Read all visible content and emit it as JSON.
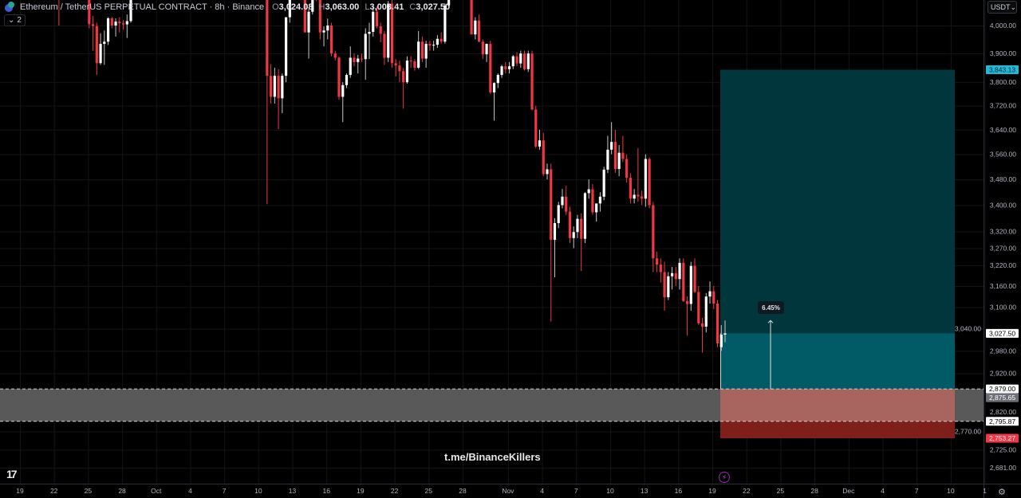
{
  "header": {
    "symbol": "Ethereum / TetherUS PERPETUAL CONTRACT · 8h · Binance",
    "o_label": "O",
    "o": "3,024.08",
    "h_label": "H",
    "h": "3,063.00",
    "l_label": "L",
    "l": "3,003.41",
    "c_label": "C",
    "c": "3,027.50",
    "indicators_count": "2"
  },
  "currency_selector": "USDT",
  "watermark": "t.me/BinanceKillers",
  "icons": {
    "logo": "tradingview-logo",
    "bolt": "lightning-icon",
    "settings": "gear-icon",
    "chevron": "chevron-down-icon"
  },
  "chart_data": {
    "type": "candlestick",
    "interval": "8h",
    "y_scale": "log",
    "grid": true,
    "colors": {
      "up": "#ffffff",
      "down": "#f23645",
      "target_zone": "#01363d",
      "profit_zone": "#005b66",
      "stop_zone": "#7f1f1b",
      "stop_overlap": "#a8655f",
      "gray_zone": "#595959",
      "target_label": "#22b8d6",
      "stop_label": "#f23645",
      "mid_label": "#6b6f78"
    },
    "price_ticks": [
      "4,000.00",
      "3,900.00",
      "3,800.00",
      "3,720.00",
      "3,640.00",
      "3,560.00",
      "3,480.00",
      "3,400.00",
      "3,320.00",
      "3,270.00",
      "3,220.00",
      "3,160.00",
      "3,100.00",
      "3,040.00",
      "2,980.00",
      "2,920.00",
      "2,820.00",
      "2,770.00",
      "2,725.00",
      "2,681.00"
    ],
    "x_ticks": [
      "19",
      "22",
      "25",
      "28",
      "Oct",
      "4",
      "7",
      "10",
      "13",
      "16",
      "19",
      "22",
      "25",
      "28",
      "Nov",
      "4",
      "7",
      "10",
      "13",
      "16",
      "19",
      "22",
      "25",
      "28",
      "Dec",
      "4",
      "7",
      "10",
      "1"
    ],
    "price_labels": [
      {
        "text": "3,843.13",
        "price": 3843.13,
        "style": "target"
      },
      {
        "text": "3,027.50",
        "price": 3027.5,
        "style": "last"
      },
      {
        "text": "2,879.00",
        "price": 2879.0,
        "style": "line"
      },
      {
        "text": "2,875.65",
        "price": 2875.65,
        "style": "mid"
      },
      {
        "text": "2,795.87",
        "price": 2795.87,
        "style": "line"
      },
      {
        "text": "2,753.27",
        "price": 2753.27,
        "style": "stop"
      }
    ],
    "position": {
      "side": "long",
      "entry": 2879.0,
      "target": 3843.13,
      "stop": 2753.27,
      "current": 3027.5,
      "move_high": 3063.0,
      "move_label": "6.45%"
    },
    "zone": {
      "top": 2879.0,
      "bottom": 2795.87
    },
    "candles": [
      [
        4520,
        4560,
        4480,
        4530
      ],
      [
        4530,
        4580,
        4500,
        4550
      ],
      [
        4550,
        4600,
        4510,
        4520
      ],
      [
        4520,
        4540,
        4460,
        4480
      ],
      [
        4480,
        4530,
        4450,
        4510
      ],
      [
        4510,
        4560,
        4490,
        4540
      ],
      [
        4540,
        4570,
        4470,
        4490
      ],
      [
        4490,
        4520,
        4440,
        4460
      ],
      [
        4460,
        4500,
        4420,
        4480
      ],
      [
        4480,
        4510,
        4430,
        4450
      ],
      [
        4450,
        4480,
        4400,
        4420
      ],
      [
        4420,
        4470,
        4390,
        4450
      ],
      [
        4450,
        4480,
        4410,
        4430
      ],
      [
        4430,
        4460,
        4380,
        4400
      ],
      [
        4400,
        4420,
        4300,
        4320
      ],
      [
        4320,
        4340,
        4000,
        4200
      ],
      [
        4200,
        4230,
        4150,
        4180
      ],
      [
        4180,
        4210,
        4120,
        4190
      ],
      [
        4190,
        4220,
        4140,
        4160
      ],
      [
        4160,
        4200,
        4130,
        4180
      ],
      [
        4180,
        4210,
        4150,
        4170
      ],
      [
        4170,
        4200,
        4140,
        4190
      ],
      [
        4190,
        4210,
        4160,
        4180
      ],
      [
        4180,
        4200,
        3990,
        4005
      ],
      [
        4005,
        4035,
        3910,
        3998
      ],
      [
        3998,
        4010,
        3825,
        3866
      ],
      [
        3866,
        3972,
        3860,
        3934
      ],
      [
        3934,
        3982,
        3860,
        3942
      ],
      [
        3942,
        4030,
        3930,
        4026
      ],
      [
        4026,
        4030,
        3990,
        4000
      ],
      [
        4000,
        4026,
        3960,
        4014
      ],
      [
        4014,
        4030,
        3975,
        4008
      ],
      [
        4008,
        4020,
        3985,
        4004
      ],
      [
        4004,
        4040,
        3955,
        4016
      ],
      [
        4016,
        4120,
        4010,
        4100
      ],
      [
        4100,
        4160,
        4095,
        4150
      ],
      [
        4150,
        4190,
        4120,
        4170
      ],
      [
        4170,
        4220,
        4150,
        4200
      ],
      [
        4200,
        4230,
        4160,
        4180
      ],
      [
        4180,
        4250,
        4170,
        4240
      ],
      [
        4240,
        4300,
        4220,
        4290
      ],
      [
        4290,
        4350,
        4270,
        4330
      ],
      [
        4330,
        4380,
        4300,
        4360
      ],
      [
        4360,
        4420,
        4340,
        4400
      ],
      [
        4400,
        4450,
        4370,
        4430
      ],
      [
        4430,
        4470,
        4400,
        4450
      ],
      [
        4450,
        4510,
        4420,
        4490
      ],
      [
        4490,
        4530,
        4460,
        4480
      ],
      [
        4480,
        4520,
        4450,
        4500
      ],
      [
        4500,
        4560,
        4480,
        4540
      ],
      [
        4540,
        4580,
        4500,
        4520
      ],
      [
        4520,
        4550,
        4470,
        4490
      ],
      [
        4490,
        4530,
        4450,
        4510
      ],
      [
        4510,
        4580,
        4500,
        4570
      ],
      [
        4570,
        4620,
        4540,
        4600
      ],
      [
        4600,
        4650,
        4560,
        4580
      ],
      [
        4580,
        4610,
        4530,
        4550
      ],
      [
        4550,
        4590,
        4510,
        4530
      ],
      [
        4530,
        4560,
        4470,
        4490
      ],
      [
        4490,
        4520,
        4440,
        4470
      ],
      [
        4470,
        4500,
        4420,
        4450
      ],
      [
        4450,
        4480,
        4400,
        4430
      ],
      [
        4430,
        4470,
        4380,
        4400
      ],
      [
        4400,
        4450,
        4370,
        4420
      ],
      [
        4420,
        4460,
        4390,
        4440
      ],
      [
        4440,
        4480,
        4400,
        4410
      ],
      [
        4410,
        4440,
        4360,
        4380
      ],
      [
        4380,
        4420,
        4350,
        4400
      ],
      [
        4400,
        4430,
        4370,
        4390
      ],
      [
        4390,
        4410,
        4340,
        4350
      ],
      [
        4350,
        4380,
        3403,
        3822
      ],
      [
        3822,
        3862,
        3727,
        3750
      ],
      [
        3750,
        3850,
        3727,
        3822
      ],
      [
        3822,
        3845,
        3642,
        3745
      ],
      [
        3745,
        3830,
        3695,
        3822
      ],
      [
        3822,
        4030,
        3800,
        4030
      ],
      [
        4030,
        4150,
        4010,
        4120
      ],
      [
        4120,
        4250,
        4100,
        4200
      ],
      [
        4200,
        4260,
        4150,
        4180
      ],
      [
        4180,
        4220,
        4120,
        4140
      ],
      [
        4140,
        4160,
        3975,
        3975
      ],
      [
        3975,
        4060,
        3882,
        4050
      ],
      [
        4050,
        4180,
        4040,
        4150
      ],
      [
        4150,
        4200,
        4090,
        4120
      ],
      [
        4120,
        4140,
        3950,
        3975
      ],
      [
        3975,
        3997,
        3925,
        3982
      ],
      [
        3982,
        4025,
        3950,
        4000
      ],
      [
        4000,
        4010,
        3890,
        3900
      ],
      [
        3900,
        3910,
        3875,
        3885
      ],
      [
        3885,
        3890,
        3740,
        3750
      ],
      [
        3750,
        3800,
        3665,
        3790
      ],
      [
        3790,
        3830,
        3780,
        3825
      ],
      [
        3825,
        3925,
        3815,
        3885
      ],
      [
        3885,
        3900,
        3855,
        3870
      ],
      [
        3870,
        3895,
        3830,
        3882
      ],
      [
        3882,
        3900,
        3870,
        3880
      ],
      [
        3880,
        3990,
        3808,
        3970
      ],
      [
        3970,
        4010,
        3880,
        3977
      ],
      [
        3977,
        4070,
        3960,
        4050
      ],
      [
        4050,
        4070,
        3990,
        3997
      ],
      [
        3997,
        4010,
        3940,
        3970
      ],
      [
        3970,
        3980,
        3860,
        3885
      ],
      [
        3885,
        4090,
        3870,
        4080
      ],
      [
        4080,
        4095,
        3850,
        3866
      ],
      [
        3866,
        3880,
        3820,
        3858
      ],
      [
        3858,
        3875,
        3800,
        3838
      ],
      [
        3838,
        3850,
        3710,
        3800
      ],
      [
        3800,
        3890,
        3795,
        3875
      ],
      [
        3875,
        3890,
        3850,
        3872
      ],
      [
        3872,
        3880,
        3840,
        3850
      ],
      [
        3850,
        3980,
        3845,
        3942
      ],
      [
        3942,
        3960,
        3870,
        3882
      ],
      [
        3882,
        3945,
        3850,
        3934
      ],
      [
        3934,
        3945,
        3910,
        3928
      ],
      [
        3928,
        3945,
        3910,
        3931
      ],
      [
        3931,
        3965,
        3920,
        3952
      ],
      [
        3952,
        3975,
        3935,
        3942
      ],
      [
        3942,
        4080,
        3935,
        4073
      ],
      [
        4073,
        4150,
        4060,
        4130
      ],
      [
        4130,
        4200,
        4100,
        4180
      ],
      [
        4180,
        4250,
        4150,
        4220
      ],
      [
        4220,
        4260,
        4160,
        4190
      ],
      [
        4190,
        4230,
        4140,
        4170
      ],
      [
        4170,
        4200,
        4110,
        4140
      ],
      [
        4140,
        4160,
        3968,
        3968
      ],
      [
        3968,
        4030,
        3950,
        4018
      ],
      [
        4018,
        4040,
        3940,
        3942
      ],
      [
        3942,
        3950,
        3880,
        3897
      ],
      [
        3897,
        3935,
        3870,
        3934
      ],
      [
        3934,
        3945,
        3760,
        3765
      ],
      [
        3765,
        3800,
        3670,
        3797
      ],
      [
        3797,
        3830,
        3780,
        3825
      ],
      [
        3825,
        3860,
        3815,
        3855
      ],
      [
        3855,
        3870,
        3830,
        3845
      ],
      [
        3845,
        3870,
        3830,
        3855
      ],
      [
        3855,
        3895,
        3845,
        3890
      ],
      [
        3890,
        3905,
        3855,
        3865
      ],
      [
        3865,
        3910,
        3850,
        3900
      ],
      [
        3900,
        3910,
        3840,
        3845
      ],
      [
        3845,
        3910,
        3835,
        3900
      ],
      [
        3900,
        3910,
        3705,
        3707
      ],
      [
        3707,
        3720,
        3580,
        3585
      ],
      [
        3585,
        3640,
        3575,
        3605
      ],
      [
        3605,
        3630,
        3490,
        3497
      ],
      [
        3497,
        3530,
        3480,
        3512
      ],
      [
        3512,
        3530,
        3060,
        3295
      ],
      [
        3295,
        3360,
        3185,
        3345
      ],
      [
        3345,
        3410,
        3330,
        3400
      ],
      [
        3400,
        3450,
        3390,
        3426
      ],
      [
        3426,
        3460,
        3370,
        3380
      ],
      [
        3380,
        3395,
        3285,
        3300
      ],
      [
        3300,
        3335,
        3270,
        3318
      ],
      [
        3318,
        3370,
        3300,
        3358
      ],
      [
        3358,
        3375,
        3203,
        3298
      ],
      [
        3298,
        3440,
        3285,
        3437
      ],
      [
        3437,
        3480,
        3420,
        3449
      ],
      [
        3449,
        3465,
        3370,
        3378
      ],
      [
        3378,
        3405,
        3350,
        3405
      ],
      [
        3405,
        3440,
        3380,
        3426
      ],
      [
        3426,
        3520,
        3415,
        3511
      ],
      [
        3511,
        3620,
        3500,
        3575
      ],
      [
        3575,
        3665,
        3560,
        3600
      ],
      [
        3600,
        3640,
        3500,
        3513
      ],
      [
        3513,
        3590,
        3490,
        3565
      ],
      [
        3565,
        3620,
        3535,
        3545
      ],
      [
        3545,
        3560,
        3470,
        3485
      ],
      [
        3485,
        3500,
        3405,
        3420
      ],
      [
        3420,
        3450,
        3405,
        3432
      ],
      [
        3432,
        3580,
        3410,
        3427
      ],
      [
        3427,
        3445,
        3400,
        3420
      ],
      [
        3420,
        3560,
        3395,
        3545
      ],
      [
        3545,
        3550,
        3390,
        3400
      ],
      [
        3400,
        3410,
        3200,
        3240
      ],
      [
        3240,
        3260,
        3200,
        3222
      ],
      [
        3222,
        3240,
        3170,
        3200
      ],
      [
        3200,
        3230,
        3090,
        3128
      ],
      [
        3128,
        3200,
        3120,
        3188
      ],
      [
        3188,
        3215,
        3150,
        3197
      ],
      [
        3197,
        3215,
        3160,
        3180
      ],
      [
        3180,
        3240,
        3150,
        3227
      ],
      [
        3227,
        3240,
        3115,
        3117
      ],
      [
        3117,
        3130,
        3021,
        3109
      ],
      [
        3109,
        3230,
        3090,
        3218
      ],
      [
        3218,
        3240,
        3140,
        3143
      ],
      [
        3143,
        3160,
        3050,
        3055
      ],
      [
        3055,
        3070,
        2975,
        3046
      ],
      [
        3046,
        3140,
        3030,
        3130
      ],
      [
        3130,
        3173,
        3110,
        3145
      ],
      [
        3145,
        3160,
        3095,
        3110
      ],
      [
        3110,
        3120,
        2990,
        3000
      ],
      [
        2990,
        3050,
        2980,
        3024
      ],
      [
        3024.08,
        3063.0,
        3003.41,
        3027.5
      ]
    ]
  }
}
